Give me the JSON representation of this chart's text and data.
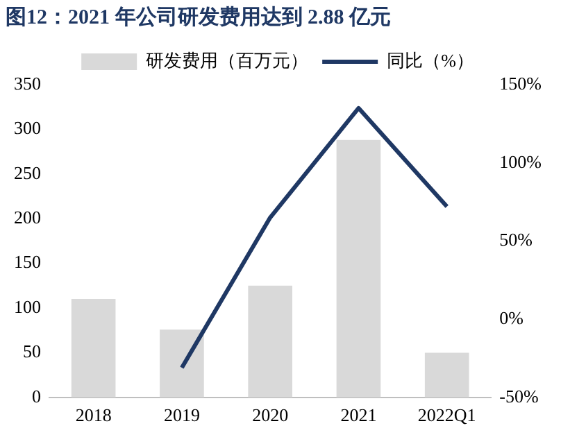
{
  "chart_data": {
    "type": "bar",
    "title": "图12：2021 年公司研发费用达到 2.88 亿元",
    "categories": [
      "2018",
      "2019",
      "2020",
      "2021",
      "2022Q1"
    ],
    "series": [
      {
        "name": "研发费用（百万元）",
        "color": "#d9d9d9",
        "values": [
          110,
          76,
          125,
          288,
          50
        ]
      },
      {
        "name": "同比（%）",
        "type": "line",
        "axis": "y2",
        "color": "#1f3864",
        "values": [
          null,
          -31,
          65,
          135,
          72
        ]
      }
    ],
    "ylim": [
      0,
      350
    ],
    "yticks": [
      0,
      50,
      100,
      150,
      200,
      250,
      300,
      350
    ],
    "y2lim": [
      -50,
      150
    ],
    "y2ticks": [
      {
        "value": -50,
        "label": "-50%"
      },
      {
        "value": 0,
        "label": "0%"
      },
      {
        "value": 50,
        "label": "50%"
      },
      {
        "value": 100,
        "label": "100%"
      },
      {
        "value": 150,
        "label": "150%"
      }
    ],
    "grid": false,
    "legend": "top",
    "marker": "none"
  }
}
